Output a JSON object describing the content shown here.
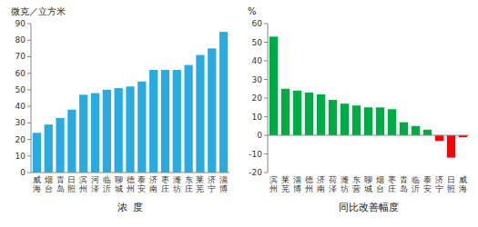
{
  "chart_data": [
    {
      "type": "bar",
      "categories": [
        "威海",
        "烟台",
        "青岛",
        "日照",
        "滨州",
        "河泽",
        "临沂",
        "聊城",
        "德州",
        "泰安",
        "济南",
        "枣庄",
        "潍坊",
        "东庄",
        "莱芜",
        "济宁",
        "淄博"
      ],
      "values": [
        24,
        29,
        33,
        38,
        47,
        48,
        50,
        51,
        52,
        55,
        62,
        62,
        62,
        65,
        71,
        75,
        85
      ],
      "color": "#29abe2",
      "x_label": "浓  度",
      "y_label": "微克／立方米",
      "ylim": [
        0,
        90
      ],
      "yticks": [
        0,
        10,
        20,
        30,
        40,
        50,
        60,
        70,
        80,
        90
      ],
      "grid": false
    },
    {
      "type": "bar",
      "categories": [
        "滨州",
        "莱芜",
        "淄博",
        "德州",
        "济南",
        "荷泽",
        "潍坊",
        "东营",
        "聊城",
        "烟台",
        "枣庄",
        "青岛",
        "临沂",
        "泰安",
        "济宁",
        "日照",
        "威海"
      ],
      "values": [
        53,
        25,
        24,
        23,
        22,
        19,
        17,
        16,
        15,
        15,
        14,
        7,
        5,
        3,
        -3,
        -12,
        -1
      ],
      "colors": [
        "#00aa44",
        "#00aa44",
        "#00aa44",
        "#00aa44",
        "#00aa44",
        "#00aa44",
        "#00aa44",
        "#00aa44",
        "#00aa44",
        "#00aa44",
        "#00aa44",
        "#00aa44",
        "#00aa44",
        "#00aa44",
        "#ff0000",
        "#ff0000",
        "#ff0000"
      ],
      "x_label": "同比改善幅度",
      "y_label": "%",
      "ylim": [
        -20,
        60
      ],
      "yticks": [
        -20,
        -10,
        0,
        10,
        20,
        30,
        40,
        50,
        60
      ],
      "grid": false
    }
  ]
}
